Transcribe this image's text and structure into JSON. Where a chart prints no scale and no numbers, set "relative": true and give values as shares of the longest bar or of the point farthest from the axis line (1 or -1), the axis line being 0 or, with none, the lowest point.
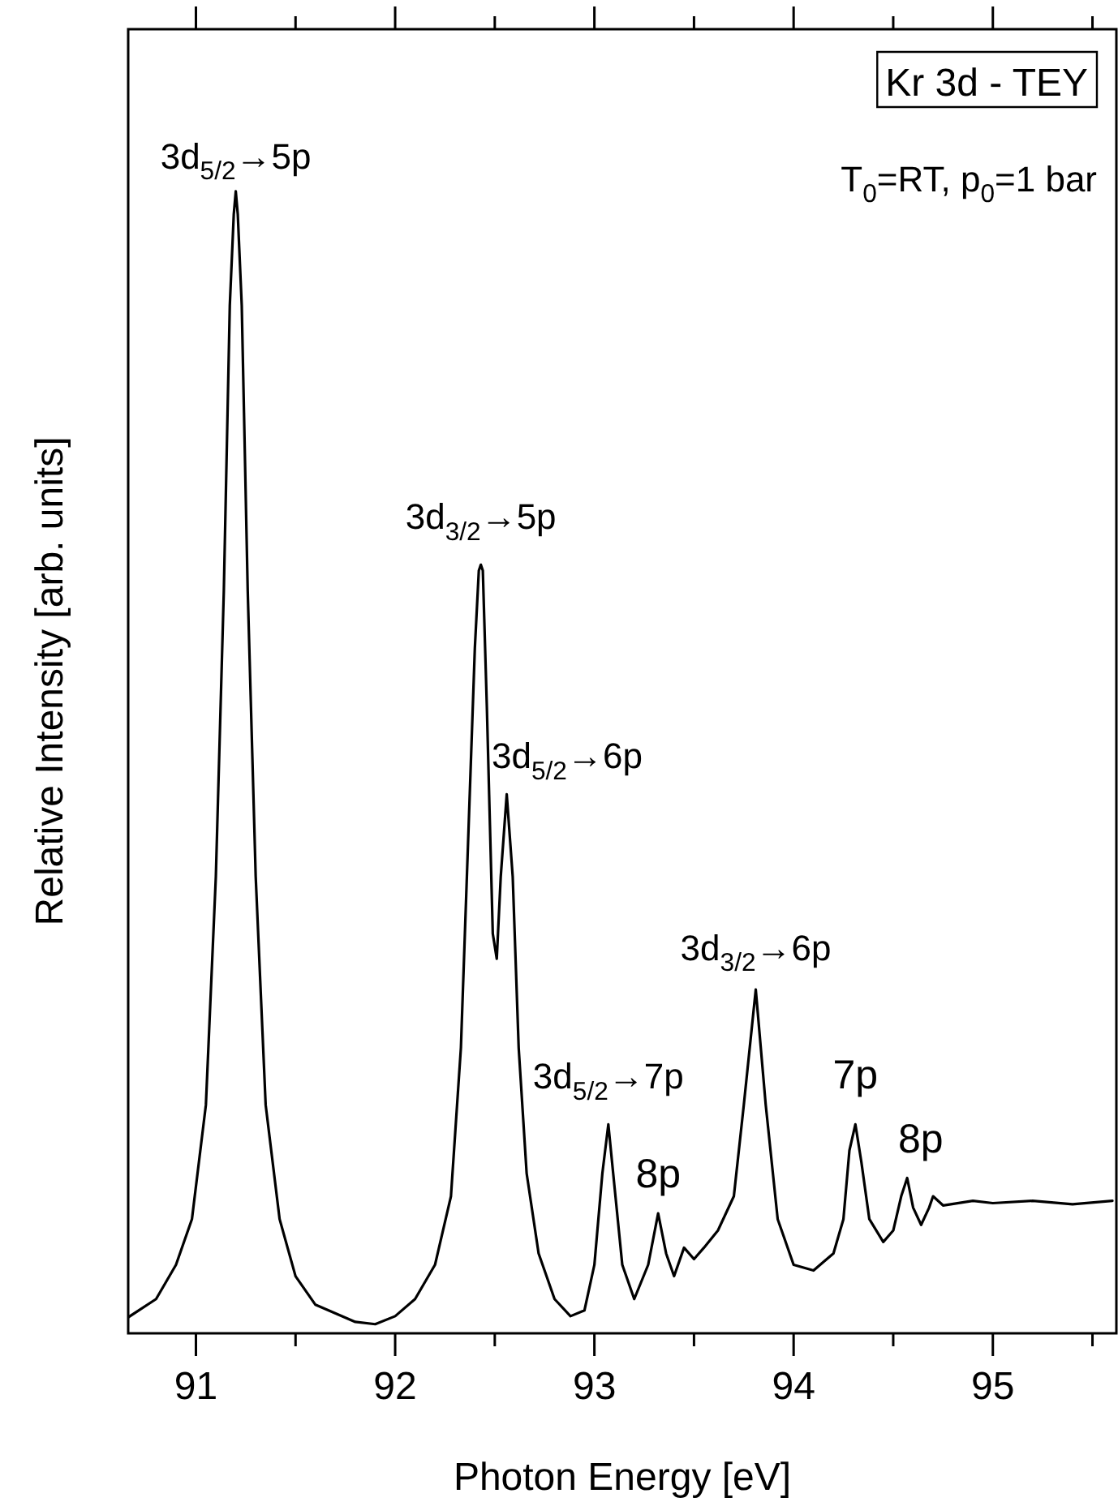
{
  "chart_data": {
    "type": "line",
    "title": "Kr 3d - TEY",
    "xlabel": "Photon Energy [eV]",
    "ylabel": "Relative Intensity [arb. units]",
    "relative": true,
    "grid": false,
    "legend": false,
    "marker": "none",
    "line_style": "solid",
    "tick_labels": "x",
    "xlim": [
      90.66,
      95.62
    ],
    "xticks": [
      91,
      {
        "value": 91.5,
        "label": null
      },
      92,
      {
        "value": 92.5,
        "label": null
      },
      93,
      {
        "value": 93.5,
        "label": null
      },
      94,
      {
        "value": 94.5,
        "label": null
      },
      95,
      {
        "value": 95.5,
        "label": null
      }
    ],
    "series": [
      {
        "color": "#000000",
        "x": [
          90.66,
          90.8,
          90.9,
          90.98,
          91.05,
          91.1,
          91.14,
          91.17,
          91.19,
          91.2,
          91.21,
          91.23,
          91.26,
          91.3,
          91.35,
          91.42,
          91.5,
          91.6,
          91.8,
          91.9,
          92.0,
          92.1,
          92.2,
          92.28,
          92.33,
          92.37,
          92.4,
          92.42,
          92.43,
          92.44,
          92.46,
          92.49,
          92.51,
          92.53,
          92.56,
          92.59,
          92.62,
          92.66,
          92.72,
          92.8,
          92.88,
          92.95,
          93.0,
          93.04,
          93.07,
          93.1,
          93.14,
          93.2,
          93.27,
          93.32,
          93.36,
          93.4,
          93.45,
          93.5,
          93.55,
          93.62,
          93.7,
          93.75,
          93.81,
          93.86,
          93.92,
          94.0,
          94.1,
          94.2,
          94.25,
          94.28,
          94.31,
          94.34,
          94.38,
          94.45,
          94.5,
          94.54,
          94.57,
          94.6,
          94.64,
          94.68,
          94.7,
          94.75,
          94.9,
          95.0,
          95.2,
          95.4,
          95.6
        ],
        "values": [
          0.014,
          0.03,
          0.06,
          0.1,
          0.2,
          0.4,
          0.65,
          0.9,
          0.98,
          1.0,
          0.98,
          0.9,
          0.65,
          0.4,
          0.2,
          0.1,
          0.05,
          0.025,
          0.01,
          0.008,
          0.015,
          0.03,
          0.06,
          0.12,
          0.25,
          0.45,
          0.6,
          0.668,
          0.673,
          0.668,
          0.55,
          0.35,
          0.328,
          0.4,
          0.472,
          0.4,
          0.25,
          0.14,
          0.07,
          0.03,
          0.015,
          0.02,
          0.06,
          0.14,
          0.183,
          0.13,
          0.06,
          0.03,
          0.06,
          0.105,
          0.07,
          0.05,
          0.075,
          0.065,
          0.075,
          0.09,
          0.12,
          0.2,
          0.301,
          0.2,
          0.1,
          0.06,
          0.055,
          0.07,
          0.1,
          0.16,
          0.183,
          0.15,
          0.1,
          0.08,
          0.09,
          0.12,
          0.136,
          0.11,
          0.095,
          0.11,
          0.12,
          0.112,
          0.116,
          0.114,
          0.116,
          0.113,
          0.116
        ]
      }
    ],
    "annotations": [
      {
        "text": "3d$_{5/2}$→5p",
        "x": 91.2,
        "y": 1.0
      },
      {
        "text": "3d$_{3/2}$→5p",
        "x": 92.43,
        "y": 0.673
      },
      {
        "text": "3d$_{5/2}$→6p",
        "x": 92.56,
        "y": 0.472
      },
      {
        "text": "3d$_{5/2}$→7p",
        "x": 93.07,
        "y": 0.183
      },
      {
        "text": "8p",
        "x": 93.32,
        "y": 0.105
      },
      {
        "text": "3d$_{3/2}$→6p",
        "x": 93.81,
        "y": 0.301
      },
      {
        "text": "7p",
        "x": 94.31,
        "y": 0.183
      },
      {
        "text": "8p",
        "x": 94.57,
        "y": 0.136
      },
      "T$_{0}$=RT, p$_{0}$=1 bar"
    ]
  }
}
